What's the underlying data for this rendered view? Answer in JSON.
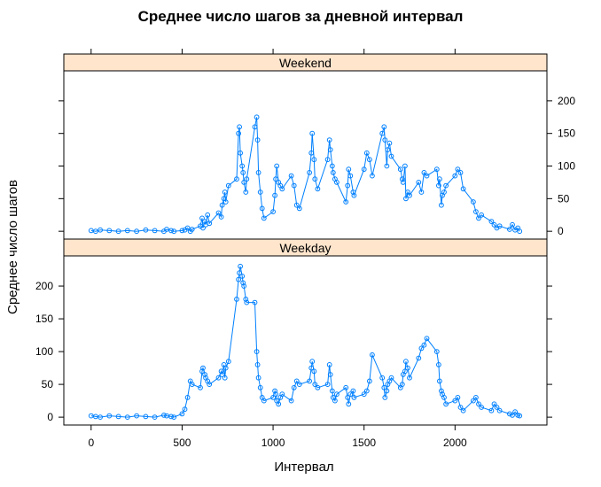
{
  "chart_data": {
    "type": "line",
    "title": "Среднее число шагов за дневной интервал",
    "xlabel": "Интервал",
    "ylabel": "Среднее число шагов",
    "xlim": [
      -150,
      2505
    ],
    "ylim": [
      -12,
      246
    ],
    "x_ticks": [
      0,
      500,
      1000,
      1500,
      2000
    ],
    "y_ticks": [
      0,
      50,
      100,
      150,
      200
    ],
    "grid": false,
    "line_color": "#0080ff",
    "strip_color": "#ffe5cc",
    "panels": [
      {
        "name": "Weekend",
        "x": [
          0,
          25,
          50,
          100,
          150,
          200,
          250,
          300,
          350,
          400,
          415,
          440,
          455,
          500,
          515,
          530,
          545,
          555,
          600,
          610,
          615,
          625,
          630,
          640,
          650,
          700,
          715,
          720,
          730,
          735,
          740,
          755,
          800,
          810,
          815,
          820,
          830,
          835,
          840,
          850,
          855,
          900,
          910,
          915,
          920,
          930,
          940,
          950,
          1000,
          1010,
          1015,
          1020,
          1030,
          1040,
          1050,
          1100,
          1115,
          1130,
          1145,
          1200,
          1210,
          1215,
          1225,
          1230,
          1245,
          1300,
          1310,
          1315,
          1325,
          1330,
          1340,
          1350,
          1400,
          1410,
          1415,
          1425,
          1440,
          1445,
          1500,
          1515,
          1530,
          1545,
          1600,
          1610,
          1615,
          1625,
          1630,
          1640,
          1650,
          1700,
          1710,
          1715,
          1725,
          1730,
          1740,
          1750,
          1800,
          1815,
          1830,
          1845,
          1900,
          1910,
          1915,
          1925,
          1930,
          1940,
          1950,
          2000,
          2015,
          2030,
          2045,
          2100,
          2115,
          2130,
          2145,
          2200,
          2215,
          2230,
          2245,
          2300,
          2315,
          2330,
          2345,
          2355
        ],
        "y": [
          1,
          0,
          2,
          1,
          0,
          1,
          0,
          2,
          1,
          0,
          3,
          1,
          0,
          1,
          2,
          5,
          0,
          3,
          8,
          20,
          5,
          15,
          10,
          25,
          12,
          28,
          22,
          40,
          50,
          60,
          45,
          70,
          80,
          150,
          160,
          120,
          100,
          90,
          75,
          60,
          80,
          160,
          175,
          140,
          90,
          60,
          35,
          20,
          30,
          55,
          80,
          100,
          75,
          70,
          65,
          85,
          70,
          40,
          35,
          90,
          120,
          150,
          110,
          80,
          65,
          110,
          140,
          125,
          100,
          90,
          80,
          75,
          45,
          70,
          95,
          85,
          60,
          55,
          95,
          120,
          110,
          85,
          150,
          160,
          140,
          100,
          125,
          135,
          115,
          95,
          80,
          75,
          100,
          50,
          60,
          55,
          75,
          60,
          90,
          85,
          95,
          70,
          80,
          40,
          55,
          60,
          70,
          85,
          95,
          90,
          65,
          45,
          30,
          20,
          25,
          15,
          10,
          5,
          8,
          3,
          10,
          2,
          5,
          0
        ]
      },
      {
        "name": "Weekday",
        "x": [
          0,
          25,
          50,
          100,
          150,
          200,
          250,
          300,
          350,
          400,
          415,
          440,
          455,
          500,
          515,
          530,
          545,
          555,
          600,
          610,
          615,
          625,
          630,
          640,
          650,
          700,
          715,
          720,
          730,
          735,
          740,
          755,
          800,
          810,
          815,
          820,
          830,
          835,
          840,
          850,
          855,
          900,
          910,
          915,
          920,
          930,
          940,
          950,
          1000,
          1010,
          1015,
          1020,
          1030,
          1040,
          1050,
          1100,
          1115,
          1130,
          1145,
          1200,
          1210,
          1215,
          1225,
          1230,
          1245,
          1300,
          1310,
          1315,
          1325,
          1330,
          1340,
          1350,
          1400,
          1410,
          1415,
          1425,
          1440,
          1445,
          1500,
          1515,
          1530,
          1545,
          1600,
          1610,
          1615,
          1625,
          1630,
          1640,
          1650,
          1700,
          1710,
          1715,
          1725,
          1730,
          1740,
          1750,
          1800,
          1815,
          1830,
          1845,
          1900,
          1910,
          1915,
          1925,
          1930,
          1940,
          1950,
          2000,
          2015,
          2030,
          2045,
          2100,
          2115,
          2130,
          2145,
          2200,
          2215,
          2230,
          2245,
          2300,
          2315,
          2330,
          2345,
          2355
        ],
        "y": [
          2,
          1,
          0,
          2,
          1,
          0,
          2,
          1,
          0,
          3,
          2,
          1,
          0,
          5,
          12,
          30,
          55,
          50,
          45,
          70,
          75,
          65,
          60,
          55,
          50,
          60,
          70,
          65,
          80,
          60,
          75,
          85,
          180,
          210,
          220,
          230,
          215,
          205,
          200,
          180,
          175,
          175,
          100,
          80,
          60,
          45,
          30,
          25,
          30,
          40,
          35,
          25,
          20,
          30,
          35,
          25,
          45,
          55,
          50,
          55,
          75,
          85,
          70,
          50,
          45,
          50,
          80,
          65,
          40,
          30,
          25,
          35,
          45,
          30,
          20,
          35,
          40,
          30,
          35,
          40,
          55,
          95,
          60,
          45,
          30,
          40,
          50,
          55,
          60,
          45,
          50,
          65,
          70,
          85,
          75,
          60,
          90,
          105,
          110,
          120,
          100,
          80,
          55,
          40,
          35,
          30,
          20,
          25,
          30,
          15,
          10,
          25,
          30,
          20,
          15,
          10,
          20,
          15,
          10,
          5,
          3,
          8,
          3,
          2
        ]
      }
    ]
  }
}
